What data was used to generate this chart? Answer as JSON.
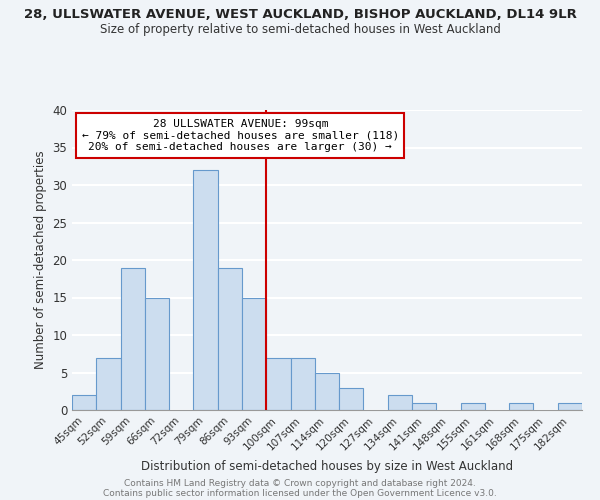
{
  "title_line1": "28, ULLSWATER AVENUE, WEST AUCKLAND, BISHOP AUCKLAND, DL14 9LR",
  "title_line2": "Size of property relative to semi-detached houses in West Auckland",
  "xlabel": "Distribution of semi-detached houses by size in West Auckland",
  "ylabel": "Number of semi-detached properties",
  "categories": [
    "45sqm",
    "52sqm",
    "59sqm",
    "66sqm",
    "72sqm",
    "79sqm",
    "86sqm",
    "93sqm",
    "100sqm",
    "107sqm",
    "114sqm",
    "120sqm",
    "127sqm",
    "134sqm",
    "141sqm",
    "148sqm",
    "155sqm",
    "161sqm",
    "168sqm",
    "175sqm",
    "182sqm"
  ],
  "values": [
    2,
    7,
    19,
    15,
    0,
    32,
    19,
    15,
    7,
    7,
    5,
    3,
    0,
    2,
    1,
    0,
    1,
    0,
    1,
    0,
    1
  ],
  "bar_color": "#ccddef",
  "bar_edge_color": "#6699cc",
  "highlight_line_color": "#cc0000",
  "ylim": [
    0,
    40
  ],
  "yticks": [
    0,
    5,
    10,
    15,
    20,
    25,
    30,
    35,
    40
  ],
  "annotation_title": "28 ULLSWATER AVENUE: 99sqm",
  "annotation_line2": "← 79% of semi-detached houses are smaller (118)",
  "annotation_line3": "20% of semi-detached houses are larger (30) →",
  "annotation_box_color": "#ffffff",
  "annotation_box_edge": "#cc0000",
  "footer_line1": "Contains HM Land Registry data © Crown copyright and database right 2024.",
  "footer_line2": "Contains public sector information licensed under the Open Government Licence v3.0.",
  "background_color": "#f0f4f8",
  "grid_color": "#ffffff",
  "highlight_bar_index": 8
}
